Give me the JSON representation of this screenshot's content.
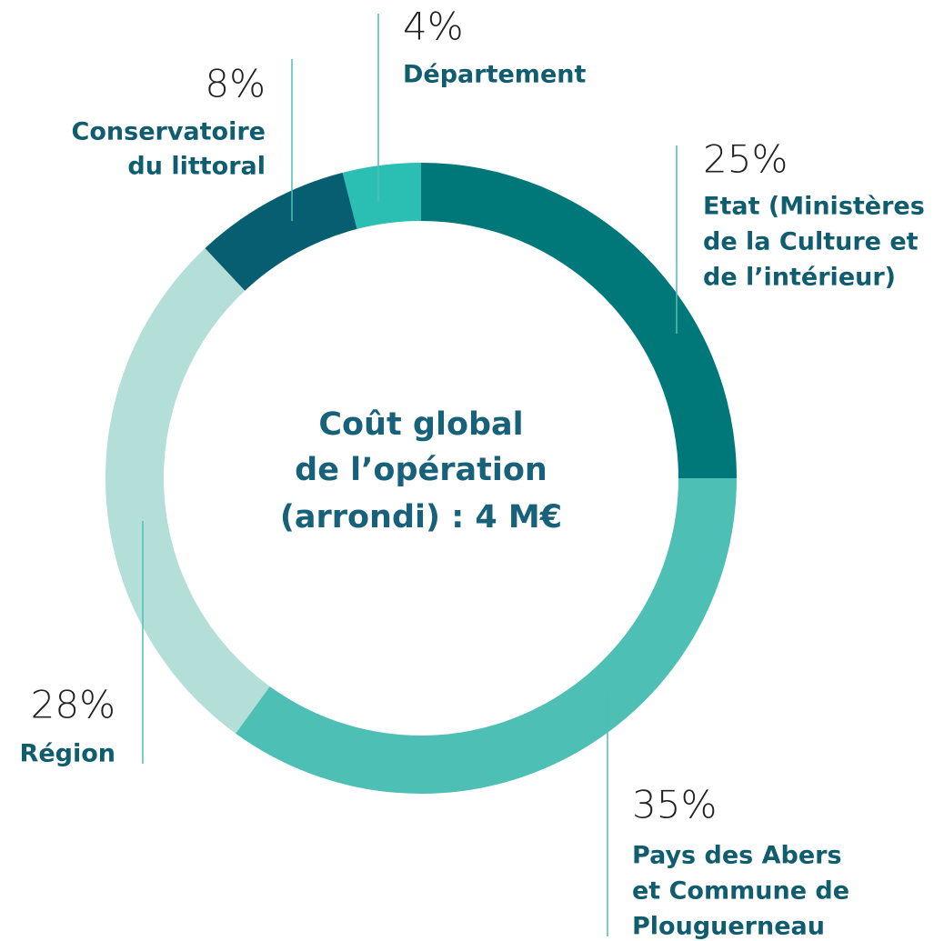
{
  "chart_data": {
    "type": "donut",
    "title": [
      "Coût global",
      "de l’opération",
      "(arrondi) : 4 M€"
    ],
    "categories": [
      [
        "Etat (Ministères",
        "de la Culture et",
        "de l’intérieur)"
      ],
      [
        "Pays des Abers",
        "et Commune de",
        "Plouguerneau"
      ],
      [
        "Région"
      ],
      [
        "Conservatoire",
        "du littoral"
      ],
      [
        "Département"
      ]
    ],
    "values": [
      25,
      35,
      28,
      8,
      4
    ],
    "value_labels": [
      "25%",
      "35%",
      "28%",
      "8%",
      "4%"
    ],
    "colors": [
      "#00787a",
      "#4dbfb4",
      "#b3dfd8",
      "#075e70",
      "#2bbfb3"
    ]
  }
}
